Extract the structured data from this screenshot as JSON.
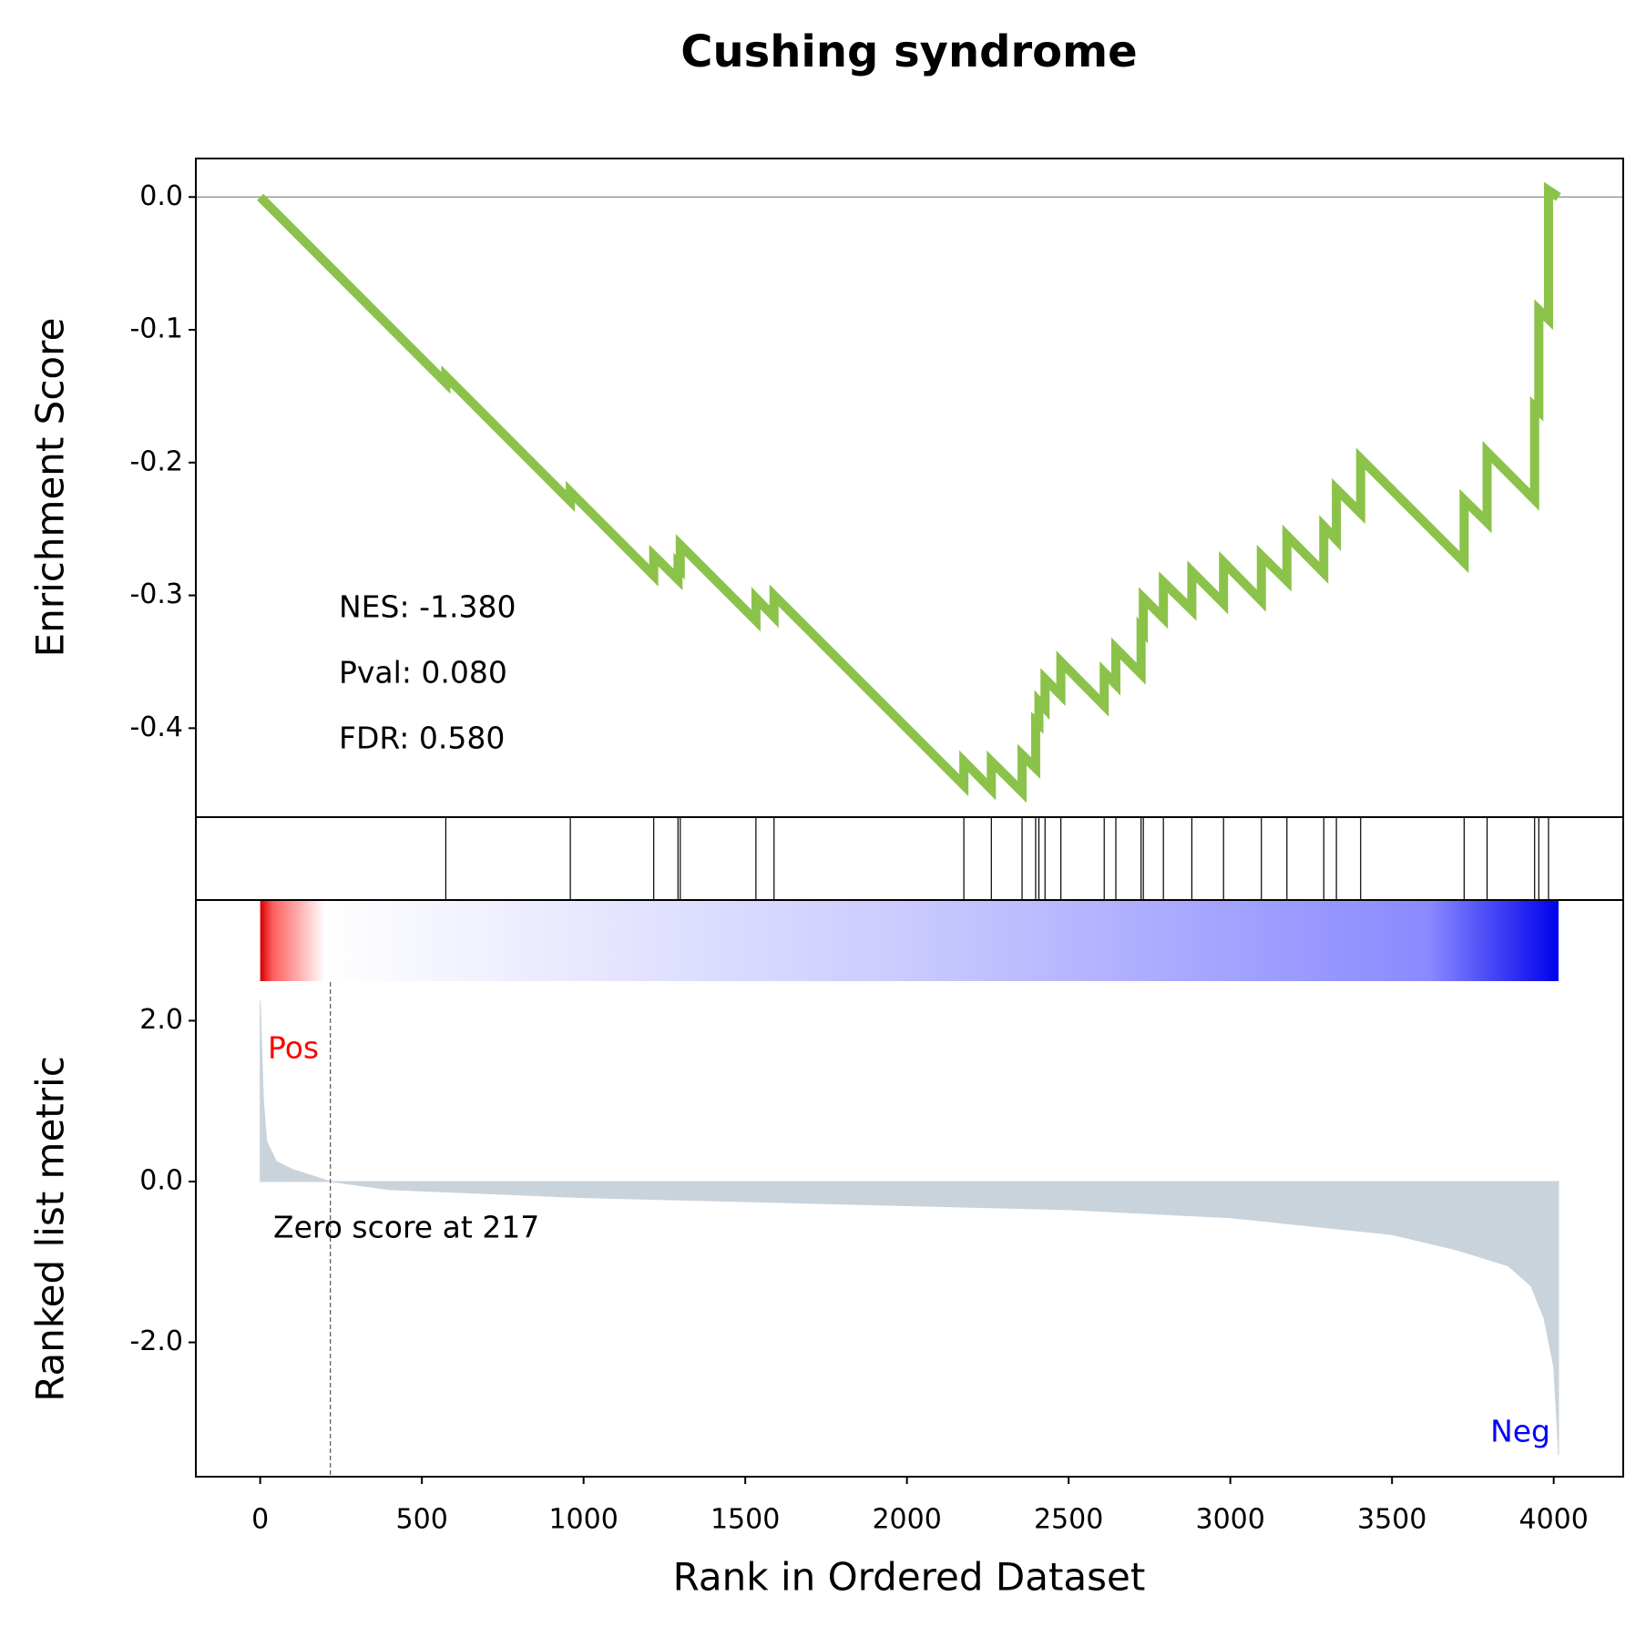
{
  "chart_data": [
    {
      "type": "line",
      "title": "Cushing syndrome",
      "ylabel": "Enrichment Score",
      "color": "#8bc34a",
      "x": [
        0,
        574,
        574,
        959,
        959,
        1217,
        1217,
        1292,
        1292,
        1299,
        1299,
        1533,
        1533,
        1589,
        1589,
        2176,
        2176,
        2261,
        2261,
        2356,
        2356,
        2398,
        2398,
        2408,
        2408,
        2427,
        2427,
        2476,
        2476,
        2610,
        2610,
        2646,
        2646,
        2724,
        2724,
        2731,
        2731,
        2793,
        2793,
        2881,
        2881,
        2979,
        2979,
        3096,
        3096,
        3175,
        3175,
        3289,
        3289,
        3328,
        3328,
        3403,
        3403,
        3723,
        3723,
        3794,
        3794,
        3941,
        3941,
        3954,
        3954,
        3984,
        3984,
        4015
      ],
      "values": [
        0,
        -0.14,
        -0.135,
        -0.229,
        -0.222,
        -0.285,
        -0.27,
        -0.288,
        -0.277,
        -0.279,
        -0.262,
        -0.319,
        -0.302,
        -0.316,
        -0.3,
        -0.443,
        -0.425,
        -0.446,
        -0.425,
        -0.448,
        -0.42,
        -0.43,
        -0.395,
        -0.397,
        -0.38,
        -0.385,
        -0.363,
        -0.375,
        -0.35,
        -0.383,
        -0.358,
        -0.367,
        -0.34,
        -0.359,
        -0.325,
        -0.327,
        -0.302,
        -0.317,
        -0.29,
        -0.311,
        -0.282,
        -0.306,
        -0.275,
        -0.304,
        -0.27,
        -0.289,
        -0.255,
        -0.283,
        -0.248,
        -0.258,
        -0.22,
        -0.238,
        -0.197,
        -0.275,
        -0.228,
        -0.245,
        -0.192,
        -0.228,
        -0.158,
        -0.161,
        -0.085,
        -0.092,
        0.005,
        0.0
      ],
      "xlim": [
        -199,
        4215
      ],
      "ylim": [
        -0.467,
        0.029
      ],
      "yticks": [
        {
          "value": 0,
          "label": "0.0"
        },
        {
          "value": -0.1,
          "label": "-0.1"
        },
        {
          "value": -0.2,
          "label": "-0.2"
        },
        {
          "value": -0.3,
          "label": "-0.3"
        },
        {
          "value": -0.4,
          "label": "-0.4"
        }
      ],
      "annotations": [
        "NES: -1.380",
        "Pval: 0.080",
        "FDR: 0.580"
      ]
    },
    {
      "type": "hits",
      "color": "#000000",
      "xlim": [
        -199,
        4215
      ],
      "x": [
        574,
        959,
        1217,
        1292,
        1299,
        1533,
        1589,
        2176,
        2261,
        2356,
        2398,
        2408,
        2427,
        2476,
        2610,
        2646,
        2724,
        2731,
        2793,
        2881,
        2979,
        3096,
        3175,
        3289,
        3328,
        3403,
        3723,
        3794,
        3941,
        3954,
        3984
      ]
    },
    {
      "type": "area",
      "ylabel": "Ranked list metric",
      "xlabel": "Rank in Ordered Dataset",
      "color": "#c9d3dc",
      "x": [
        0,
        10,
        20,
        50,
        100,
        217,
        400,
        1000,
        2000,
        2500,
        3000,
        3500,
        3700,
        3860,
        3930,
        3970,
        4000,
        4010,
        4015
      ],
      "values": [
        2.25,
        1.0,
        0.5,
        0.25,
        0.15,
        0.0,
        -0.1,
        -0.2,
        -0.3,
        -0.35,
        -0.45,
        -0.66,
        -0.85,
        -1.05,
        -1.3,
        -1.7,
        -2.3,
        -3.0,
        -3.4
      ],
      "xlim": [
        -199,
        4215
      ],
      "ylim": [
        -3.67,
        3.5
      ],
      "xticks": [
        0,
        500,
        1000,
        1500,
        2000,
        2500,
        3000,
        3500,
        4000
      ],
      "yticks": [
        {
          "value": 2,
          "label": "2.0"
        },
        {
          "value": 0,
          "label": "0.0"
        },
        {
          "value": -2,
          "label": "-2.0"
        }
      ],
      "zero_score_rank": 217,
      "zero_score_label": "Zero score at 217",
      "pos_label": "Pos",
      "neg_label": "Neg",
      "pos_color": "#ff0000",
      "neg_color": "#0000ff"
    }
  ]
}
